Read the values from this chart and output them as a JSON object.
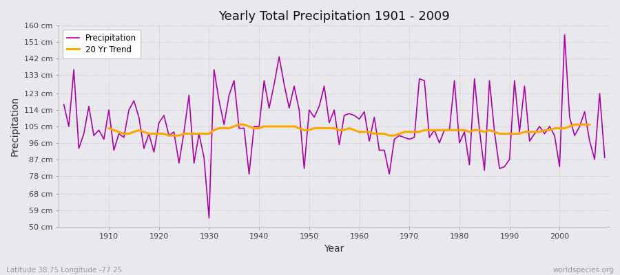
{
  "title": "Yearly Total Precipitation 1901 - 2009",
  "xlabel": "Year",
  "ylabel": "Precipitation",
  "subtitle_left": "Latitude 38.75 Longitude -77.25",
  "subtitle_right": "worldspecies.org",
  "bg_color": "#e8e8ed",
  "plot_bg_color": "#e8e8ed",
  "line_color": "#aa00aa",
  "trend_color": "#FFA500",
  "ylim": [
    50,
    160
  ],
  "yticks": [
    50,
    59,
    68,
    78,
    87,
    96,
    105,
    114,
    123,
    133,
    142,
    151,
    160
  ],
  "years": [
    1901,
    1902,
    1903,
    1904,
    1905,
    1906,
    1907,
    1908,
    1909,
    1910,
    1911,
    1912,
    1913,
    1914,
    1915,
    1916,
    1917,
    1918,
    1919,
    1920,
    1921,
    1922,
    1923,
    1924,
    1925,
    1926,
    1927,
    1928,
    1929,
    1930,
    1931,
    1932,
    1933,
    1934,
    1935,
    1936,
    1937,
    1938,
    1939,
    1940,
    1941,
    1942,
    1943,
    1944,
    1945,
    1946,
    1947,
    1948,
    1949,
    1950,
    1951,
    1952,
    1953,
    1954,
    1955,
    1956,
    1957,
    1958,
    1959,
    1960,
    1961,
    1962,
    1963,
    1964,
    1965,
    1966,
    1967,
    1968,
    1969,
    1970,
    1971,
    1972,
    1973,
    1974,
    1975,
    1976,
    1977,
    1978,
    1979,
    1980,
    1981,
    1982,
    1983,
    1984,
    1985,
    1986,
    1987,
    1988,
    1989,
    1990,
    1991,
    1992,
    1993,
    1994,
    1995,
    1996,
    1997,
    1998,
    1999,
    2000,
    2001,
    2002,
    2003,
    2004,
    2005,
    2006,
    2007,
    2008,
    2009
  ],
  "precip": [
    117,
    105,
    136,
    93,
    101,
    116,
    100,
    103,
    98,
    114,
    92,
    101,
    99,
    114,
    119,
    110,
    93,
    101,
    91,
    107,
    111,
    100,
    102,
    85,
    102,
    122,
    85,
    101,
    88,
    55,
    136,
    119,
    106,
    122,
    130,
    104,
    104,
    79,
    105,
    105,
    130,
    115,
    128,
    143,
    128,
    115,
    127,
    114,
    82,
    114,
    110,
    116,
    127,
    107,
    114,
    95,
    111,
    112,
    111,
    109,
    113,
    97,
    110,
    92,
    92,
    79,
    98,
    100,
    99,
    98,
    99,
    131,
    130,
    99,
    103,
    96,
    103,
    103,
    130,
    96,
    102,
    84,
    131,
    103,
    81,
    130,
    102,
    82,
    83,
    87,
    130,
    102,
    127,
    97,
    101,
    105,
    101,
    105,
    100,
    83,
    155,
    110,
    100,
    105,
    113,
    97,
    87,
    123,
    88
  ],
  "trend": [
    null,
    null,
    null,
    null,
    null,
    null,
    null,
    null,
    null,
    104,
    103,
    102,
    101,
    101,
    102,
    103,
    102,
    101,
    101,
    101,
    101,
    100,
    100,
    100,
    101,
    101,
    101,
    101,
    101,
    101,
    103,
    104,
    104,
    104,
    105,
    106,
    106,
    105,
    104,
    104,
    105,
    105,
    105,
    105,
    105,
    105,
    105,
    104,
    103,
    103,
    104,
    104,
    104,
    104,
    104,
    103,
    103,
    104,
    103,
    102,
    102,
    102,
    101,
    101,
    101,
    100,
    100,
    101,
    102,
    102,
    102,
    102,
    103,
    103,
    103,
    103,
    103,
    103,
    103,
    103,
    103,
    102,
    103,
    103,
    102,
    103,
    102,
    101,
    101,
    101,
    101,
    101,
    102,
    102,
    102,
    102,
    103,
    103,
    104,
    104,
    104,
    105,
    106,
    106,
    106,
    106,
    null,
    null,
    null
  ]
}
